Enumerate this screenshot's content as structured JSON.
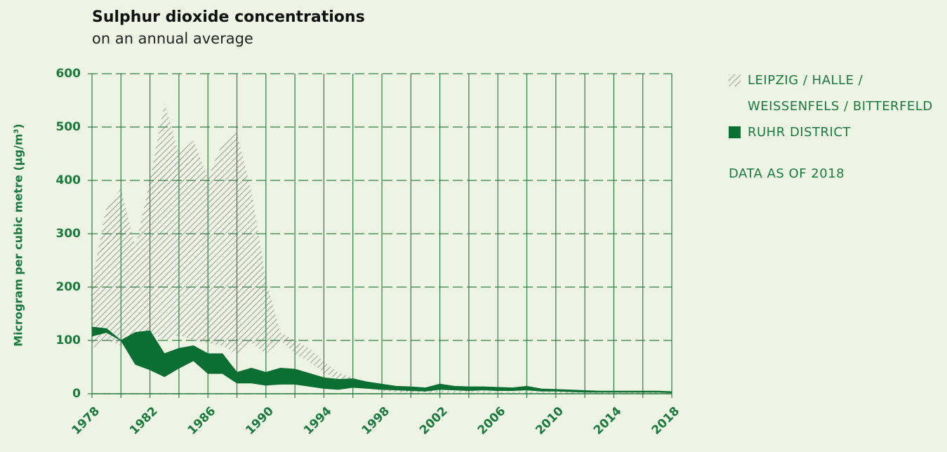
{
  "chart_data": {
    "type": "band",
    "title": "Sulphur dioxide concentrations",
    "subtitle": "on an annual average",
    "y_label": "Microgram per cubic metre (µg/m³)",
    "annotation": "DATA AS OF 2018",
    "x": [
      1978,
      1979,
      1980,
      1981,
      1982,
      1983,
      1984,
      1985,
      1986,
      1987,
      1988,
      1989,
      1990,
      1991,
      1992,
      1993,
      1994,
      1995,
      1996,
      1997,
      1998,
      1999,
      2000,
      2001,
      2002,
      2003,
      2004,
      2005,
      2006,
      2007,
      2008,
      2009,
      2010,
      2011,
      2012,
      2013,
      2014,
      2015,
      2016,
      2017,
      2018
    ],
    "xlim": [
      1978,
      2018
    ],
    "xticks": [
      1978,
      1982,
      1986,
      1990,
      1994,
      1998,
      2002,
      2006,
      2010,
      2014,
      2018
    ],
    "xminor_ticks": [
      1980,
      1984,
      1988,
      1992,
      1996,
      2000,
      2004,
      2008,
      2012,
      2016
    ],
    "ylim": [
      0,
      600
    ],
    "yticks": [
      0,
      100,
      200,
      300,
      400,
      500,
      600
    ],
    "grid": true,
    "series": [
      {
        "name": "LEIPZIG / HALLE / WEISSENFELS / BITTERFELD",
        "color": "#6b6b6b",
        "pattern": "hatch",
        "high": [
          210,
          350,
          385,
          275,
          400,
          545,
          450,
          475,
          405,
          470,
          490,
          380,
          215,
          115,
          100,
          85,
          60,
          40,
          30,
          20,
          15,
          10,
          8,
          6,
          5,
          5,
          5,
          5,
          4,
          4,
          4,
          4,
          4,
          4,
          3,
          3,
          3,
          3,
          3,
          3,
          3
        ],
        "low": [
          85,
          100,
          90,
          100,
          115,
          100,
          110,
          100,
          95,
          90,
          75,
          95,
          75,
          100,
          75,
          60,
          40,
          25,
          15,
          10,
          5,
          3,
          2,
          2,
          2,
          2,
          2,
          2,
          2,
          2,
          2,
          2,
          2,
          1,
          1,
          1,
          1,
          1,
          1,
          1,
          1
        ]
      },
      {
        "name": "RUHR DISTRICT",
        "color": "#0b6f33",
        "pattern": "solid",
        "high": [
          125,
          122,
          100,
          115,
          118,
          75,
          85,
          90,
          75,
          75,
          40,
          48,
          40,
          48,
          46,
          38,
          30,
          27,
          28,
          22,
          18,
          14,
          13,
          11,
          18,
          14,
          13,
          13,
          12,
          11,
          14,
          9,
          8,
          7,
          6,
          5,
          5,
          5,
          5,
          5,
          4
        ],
        "low": [
          108,
          115,
          100,
          55,
          45,
          32,
          48,
          62,
          38,
          38,
          20,
          20,
          16,
          18,
          18,
          14,
          10,
          8,
          12,
          10,
          8,
          7,
          6,
          5,
          8,
          7,
          6,
          7,
          6,
          6,
          7,
          5,
          5,
          4,
          3,
          3,
          3,
          3,
          3,
          3,
          2
        ]
      }
    ]
  }
}
